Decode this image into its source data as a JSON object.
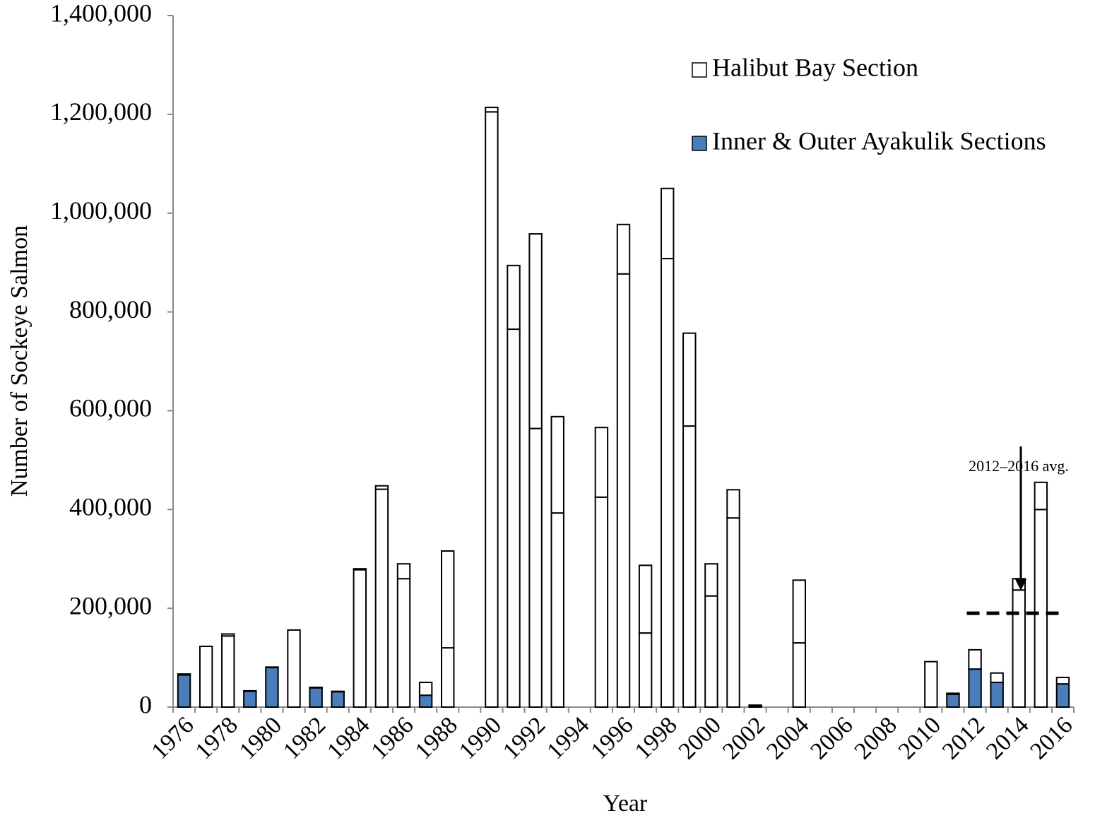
{
  "chart_data": {
    "type": "stacked_bar",
    "y_axis_label": "Number of Sockeye Salmon",
    "x_axis_label": "Year",
    "annotation": "2012–2016 avg.",
    "avg_value": 190000,
    "categories": [
      "1976",
      null,
      "1978",
      null,
      "1980",
      null,
      "1982",
      null,
      "1984",
      null,
      "1986",
      null,
      "1988",
      null,
      "1990",
      null,
      "1992",
      null,
      "1994",
      null,
      "1996",
      null,
      "1998",
      null,
      "2000",
      null,
      "2002",
      null,
      "2004",
      null,
      "2006",
      null,
      "2008",
      null,
      "2010",
      null,
      "2012",
      null,
      "2014",
      null,
      "2016"
    ],
    "series": [
      {
        "name": "Inner & Outer Ayakulik Sections",
        "color": "#4a7ebb",
        "values": [
          65000,
          0,
          144000,
          32000,
          80000,
          0,
          39000,
          31000,
          278000,
          441000,
          260000,
          24000,
          120000,
          0,
          1205000,
          765000,
          564000,
          393000,
          0,
          425000,
          877000,
          150000,
          908000,
          569000,
          225000,
          383000,
          3000,
          0,
          130000,
          0,
          0,
          0,
          0,
          0,
          0,
          26000,
          77000,
          50000,
          237000,
          400000,
          47000
        ],
        "colors": [
          "#4a7ebb",
          "#ffffff",
          "#ffffff",
          "#4a7ebb",
          "#4a7ebb",
          "#ffffff",
          "#4a7ebb",
          "#4a7ebb",
          "#ffffff",
          "#ffffff",
          "#ffffff",
          "#4a7ebb",
          "#ffffff",
          "#ffffff",
          "#ffffff",
          "#ffffff",
          "#ffffff",
          "#ffffff",
          "#ffffff",
          "#ffffff",
          "#ffffff",
          "#ffffff",
          "#ffffff",
          "#ffffff",
          "#ffffff",
          "#ffffff",
          "#4a7ebb",
          "#ffffff",
          "#ffffff",
          "#ffffff",
          "#ffffff",
          "#ffffff",
          "#ffffff",
          "#ffffff",
          "#ffffff",
          "#4a7ebb",
          "#4a7ebb",
          "#4a7ebb",
          "#ffffff",
          "#ffffff",
          "#4a7ebb"
        ]
      },
      {
        "name": "Halibut Bay Section",
        "color": "#ffffff",
        "values": [
          2000,
          123000,
          4000,
          1000,
          1000,
          156000,
          1000,
          1000,
          2000,
          7000,
          30000,
          26000,
          196000,
          0,
          9000,
          129000,
          394000,
          195000,
          0,
          141000,
          100000,
          137000,
          142000,
          188000,
          65000,
          57000,
          1000,
          0,
          127000,
          0,
          0,
          0,
          0,
          0,
          92000,
          2000,
          39000,
          19000,
          23000,
          55000,
          13000
        ]
      }
    ],
    "ylim": [
      0,
      1400000
    ],
    "yticks": [
      0,
      {
        "value": 200000,
        "label": "200,000"
      },
      {
        "value": 400000,
        "label": "400,000"
      },
      {
        "value": 600000,
        "label": "600,000"
      },
      {
        "value": 800000,
        "label": "800,000"
      },
      {
        "value": 1000000,
        "label": "1,000,000"
      },
      {
        "value": 1200000,
        "label": "1,200,000"
      },
      {
        "value": 1400000,
        "label": "1,400,000"
      }
    ]
  }
}
